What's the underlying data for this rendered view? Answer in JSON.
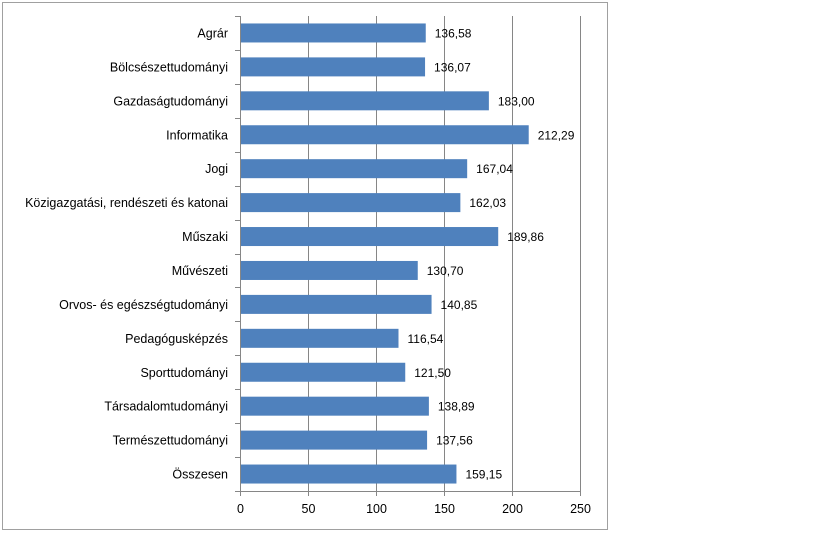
{
  "chart_data": {
    "type": "bar",
    "orientation": "horizontal",
    "categories": [
      "Agrár",
      "Bölcsészettudományi",
      "Gazdaságtudományi",
      "Informatika",
      "Jogi",
      "Közigazgatási, rendészeti és katonai",
      "Műszaki",
      "Művészeti",
      "Orvos- és egészségtudományi",
      "Pedagógusképzés",
      "Sporttudományi",
      "Társadalomtudományi",
      "Természettudományi",
      "Összesen"
    ],
    "values": [
      136.58,
      136.07,
      183.0,
      212.29,
      167.04,
      162.03,
      189.86,
      130.7,
      140.85,
      116.54,
      121.5,
      138.89,
      137.56,
      159.15
    ],
    "value_labels": [
      "136,58",
      "136,07",
      "183,00",
      "212,29",
      "167,04",
      "162,03",
      "189,86",
      "130,70",
      "140,85",
      "116,54",
      "121,50",
      "138,89",
      "137,56",
      "159,15"
    ],
    "xlim": [
      0,
      250
    ],
    "xticks": [
      0,
      50,
      100,
      150,
      200,
      250
    ],
    "xtick_labels": [
      "0",
      "50",
      "100",
      "150",
      "200",
      "250"
    ],
    "grid": "vertical",
    "legend": "none",
    "title": "",
    "xlabel": "",
    "ylabel": "",
    "bar_color": "#4f81bd",
    "grid_color": "#868686"
  }
}
